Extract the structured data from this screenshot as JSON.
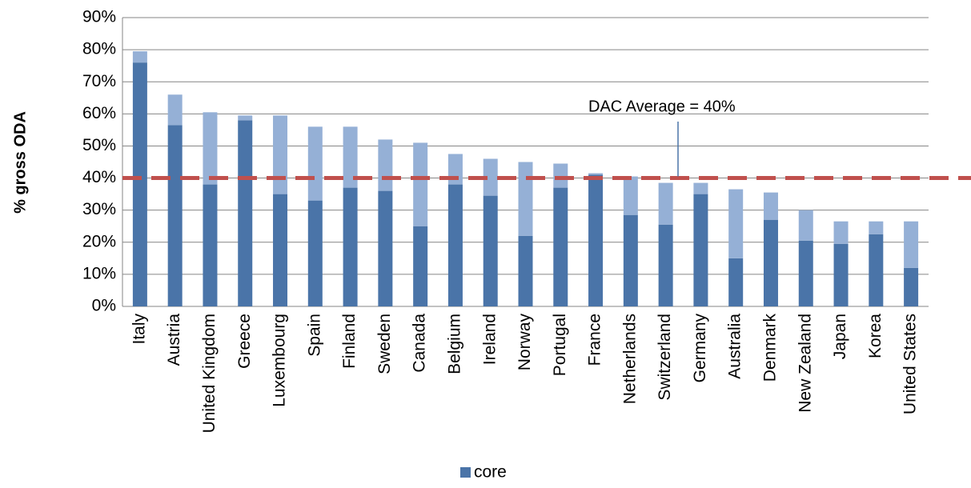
{
  "chart_data": {
    "type": "stacked_bar",
    "y_axis_label": "% gross ODA",
    "categories": [
      "Italy",
      "Austria",
      "United Kingdom",
      "Greece",
      "Luxembourg",
      "Spain",
      "Finland",
      "Sweden",
      "Canada",
      "Belgium",
      "Ireland",
      "Norway",
      "Portugal",
      "France",
      "Netherlands",
      "Switzerland",
      "Germany",
      "Australia",
      "Denmark",
      "New Zealand",
      "Japan",
      "Korea",
      "United States"
    ],
    "series": [
      {
        "name": "core",
        "color": "#4a74a8",
        "values": [
          76,
          56.5,
          38,
          58,
          35,
          33,
          37,
          36,
          25,
          38,
          34.5,
          22,
          37,
          41,
          28.5,
          25.5,
          35,
          15,
          27,
          20.5,
          19.5,
          22.5,
          12
        ]
      },
      {
        "color": "#95b0d6",
        "values": [
          3.5,
          9.5,
          22.5,
          1.5,
          24.5,
          23,
          19,
          16,
          26,
          9.5,
          11.5,
          23,
          7.5,
          0.5,
          12,
          13,
          3.5,
          21.5,
          8.5,
          9.5,
          7,
          4,
          14.5
        ]
      }
    ],
    "average_line": {
      "value": 40,
      "color": "#c0504d",
      "label": "DAC Average = 40%"
    },
    "ylim": [
      0,
      90
    ],
    "yticks": [
      {
        "value": 0,
        "label": "0%"
      },
      {
        "value": 10,
        "label": "10%"
      },
      {
        "value": 20,
        "label": "20%"
      },
      {
        "value": 30,
        "label": "30%"
      },
      {
        "value": 40,
        "label": "40%"
      },
      {
        "value": 50,
        "label": "50%"
      },
      {
        "value": 60,
        "label": "60%"
      },
      {
        "value": 70,
        "label": "70%"
      },
      {
        "value": 80,
        "label": "80%"
      },
      {
        "value": 90,
        "label": "90%"
      }
    ],
    "grid": true
  }
}
